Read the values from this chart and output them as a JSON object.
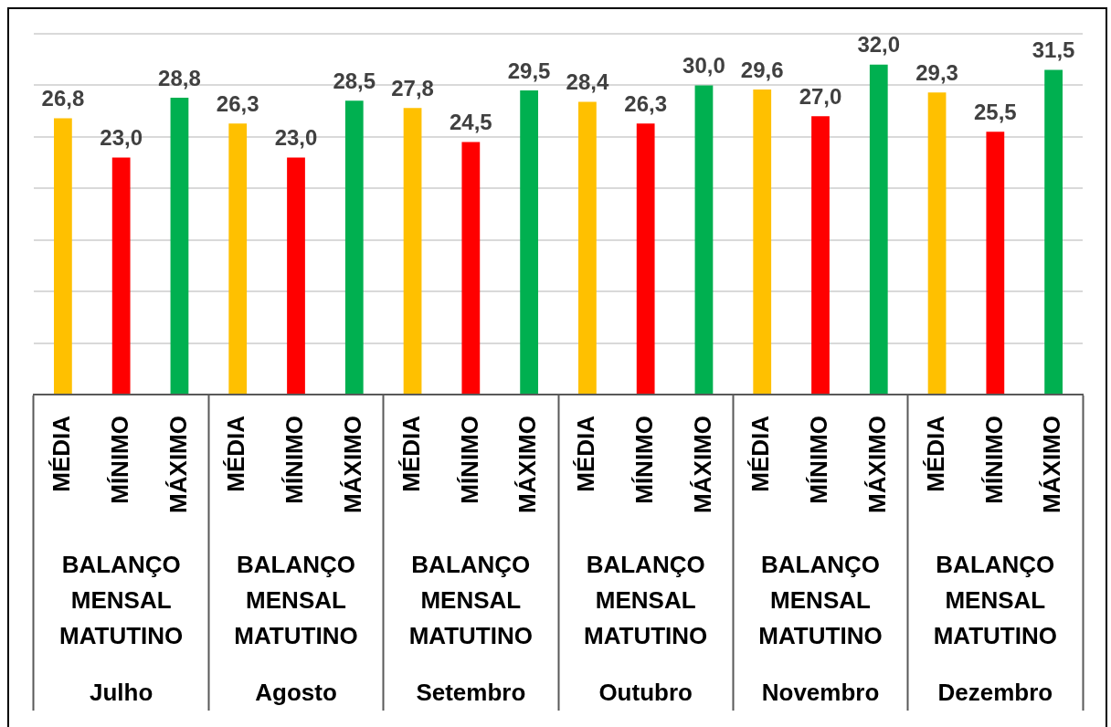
{
  "chart_data": {
    "type": "bar",
    "xlabel": "BALANÇO MENSAL MATUTINO",
    "categories": [
      "Julho",
      "Agosto",
      "Setembro",
      "Outubro",
      "Novembro",
      "Dezembro"
    ],
    "series": [
      {
        "name": "MÉDIA",
        "color": "#ffc000",
        "values": [
          26.8,
          26.3,
          27.8,
          28.4,
          29.6,
          29.3
        ],
        "value_labels": [
          "26,8",
          "26,3",
          "27,8",
          "28,4",
          "29,6",
          "29,3"
        ]
      },
      {
        "name": "MÍNIMO",
        "color": "#ff0000",
        "values": [
          23.0,
          23.0,
          24.5,
          26.3,
          27.0,
          25.5
        ],
        "value_labels": [
          "23,0",
          "23,0",
          "24,5",
          "26,3",
          "27,0",
          "25,5"
        ]
      },
      {
        "name": "MÁXIMO",
        "color": "#00b050",
        "values": [
          28.8,
          28.5,
          29.5,
          30.0,
          32.0,
          31.5
        ],
        "value_labels": [
          "28,8",
          "28,5",
          "29,5",
          "30,0",
          "32,0",
          "31,5"
        ]
      }
    ],
    "ylim": [
      0,
      35
    ],
    "yticks": [
      {
        "value": 0,
        "label": null
      },
      {
        "value": 5,
        "label": null
      },
      {
        "value": 10,
        "label": null
      },
      {
        "value": 15,
        "label": null
      },
      {
        "value": 20,
        "label": null
      },
      {
        "value": 25,
        "label": null
      },
      {
        "value": 30,
        "label": null
      },
      {
        "value": 35,
        "label": null
      }
    ],
    "grid": "y",
    "tick_labels": "x"
  }
}
